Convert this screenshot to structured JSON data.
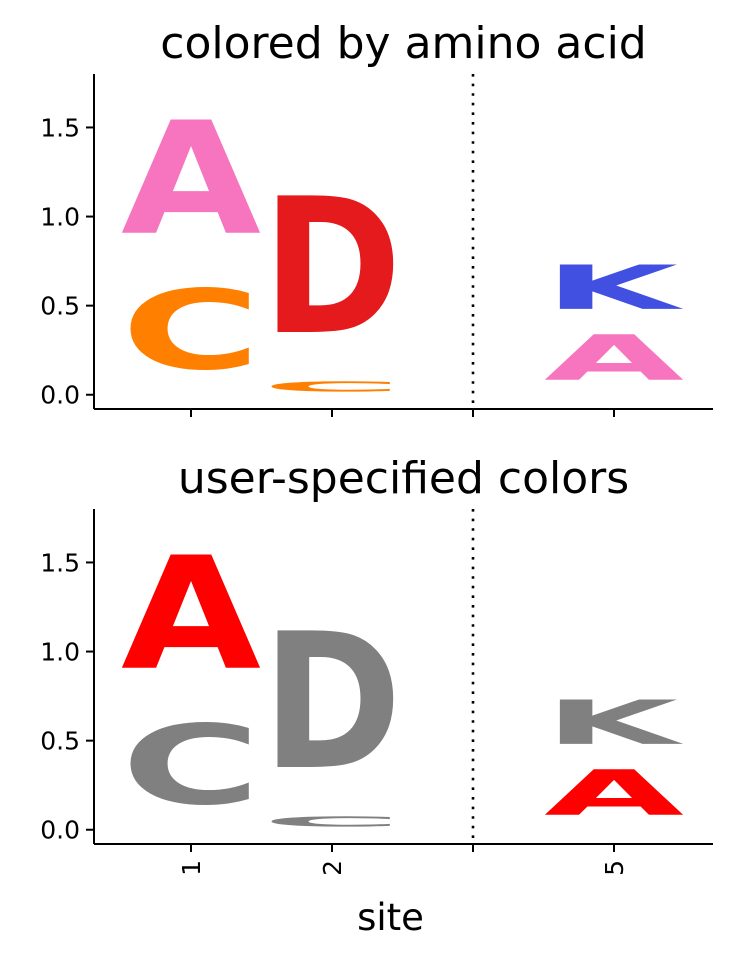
{
  "chart_data": [
    {
      "type": "logo",
      "title": "colored by amino acid",
      "ylim": [
        -0.08,
        1.8
      ],
      "yticks": [
        "0.0",
        "0.5",
        "1.0",
        "1.5"
      ],
      "sites": [
        "1",
        "2",
        "",
        "5"
      ],
      "separator_after_site_index": 2,
      "letters": [
        {
          "site": "1",
          "letter": "C",
          "y0": 0.0,
          "y1": 0.72,
          "color": "#FF7F00"
        },
        {
          "site": "1",
          "letter": "A",
          "y0": 0.7,
          "y1": 1.72,
          "color": "#F774BE"
        },
        {
          "site": "2",
          "letter": "C",
          "y0": 0.0,
          "y1": 0.09,
          "color": "#FF7F00"
        },
        {
          "site": "2",
          "letter": "D",
          "y0": 0.1,
          "y1": 1.33,
          "color": "#E41A1C"
        },
        {
          "site": "5",
          "letter": "A",
          "y0": 0.0,
          "y1": 0.41,
          "color": "#F774BE"
        },
        {
          "site": "5",
          "letter": "K",
          "y0": 0.4,
          "y1": 0.8,
          "color": "#4150E1"
        }
      ]
    },
    {
      "type": "logo",
      "title": "user-specified colors",
      "ylim": [
        -0.08,
        1.8
      ],
      "yticks": [
        "0.0",
        "0.5",
        "1.0",
        "1.5"
      ],
      "sites": [
        "1",
        "2",
        "",
        "5"
      ],
      "separator_after_site_index": 2,
      "xlabel": "site",
      "letters": [
        {
          "site": "1",
          "letter": "C",
          "y0": 0.0,
          "y1": 0.72,
          "color": "#808080"
        },
        {
          "site": "1",
          "letter": "A",
          "y0": 0.7,
          "y1": 1.72,
          "color": "#FF0000"
        },
        {
          "site": "2",
          "letter": "C",
          "y0": 0.0,
          "y1": 0.09,
          "color": "#808080"
        },
        {
          "site": "2",
          "letter": "D",
          "y0": 0.1,
          "y1": 1.33,
          "color": "#808080"
        },
        {
          "site": "5",
          "letter": "A",
          "y0": 0.0,
          "y1": 0.41,
          "color": "#FF0000"
        },
        {
          "site": "5",
          "letter": "K",
          "y0": 0.4,
          "y1": 0.8,
          "color": "#808080"
        }
      ]
    }
  ]
}
